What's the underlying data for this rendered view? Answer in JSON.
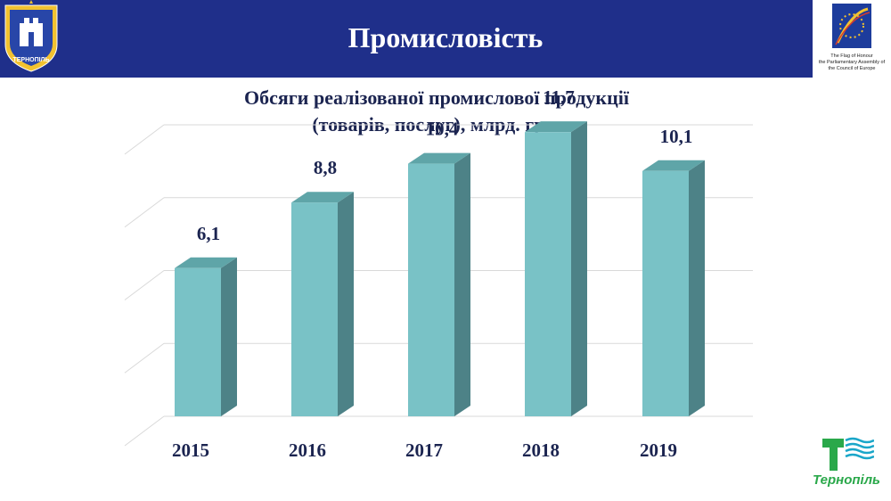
{
  "header": {
    "title": "Промисловість",
    "flag_caption": [
      "The Flag of Honour",
      "the Parliamentary Assembly of",
      "the Council of Europe"
    ],
    "coat_of_arms_label": "ТЕРНОПІЛЬ",
    "bg_color": "#1f2f8a"
  },
  "city_logo": {
    "text": "Тернопіль",
    "icon": "ternopil-city-logo"
  },
  "chart_data": {
    "type": "bar",
    "title_lines": [
      "Обсяги реалізованої промислової продукції",
      "(товарів, послуг), млрд. грн."
    ],
    "categories": [
      "2015",
      "2016",
      "2017",
      "2018",
      "2019"
    ],
    "values": [
      6.1,
      8.8,
      10.4,
      11.7,
      10.1
    ],
    "value_labels": [
      "6,1",
      "8,8",
      "10,4",
      "11,7",
      "10,1"
    ],
    "ylim": [
      0,
      12
    ],
    "grid": true,
    "three_d": true,
    "colors": {
      "front": "#79c2c6",
      "top": "#5fa5a8",
      "side": "#4d8287",
      "labels": "#1b2450",
      "grid": "#d9d9d9"
    }
  }
}
